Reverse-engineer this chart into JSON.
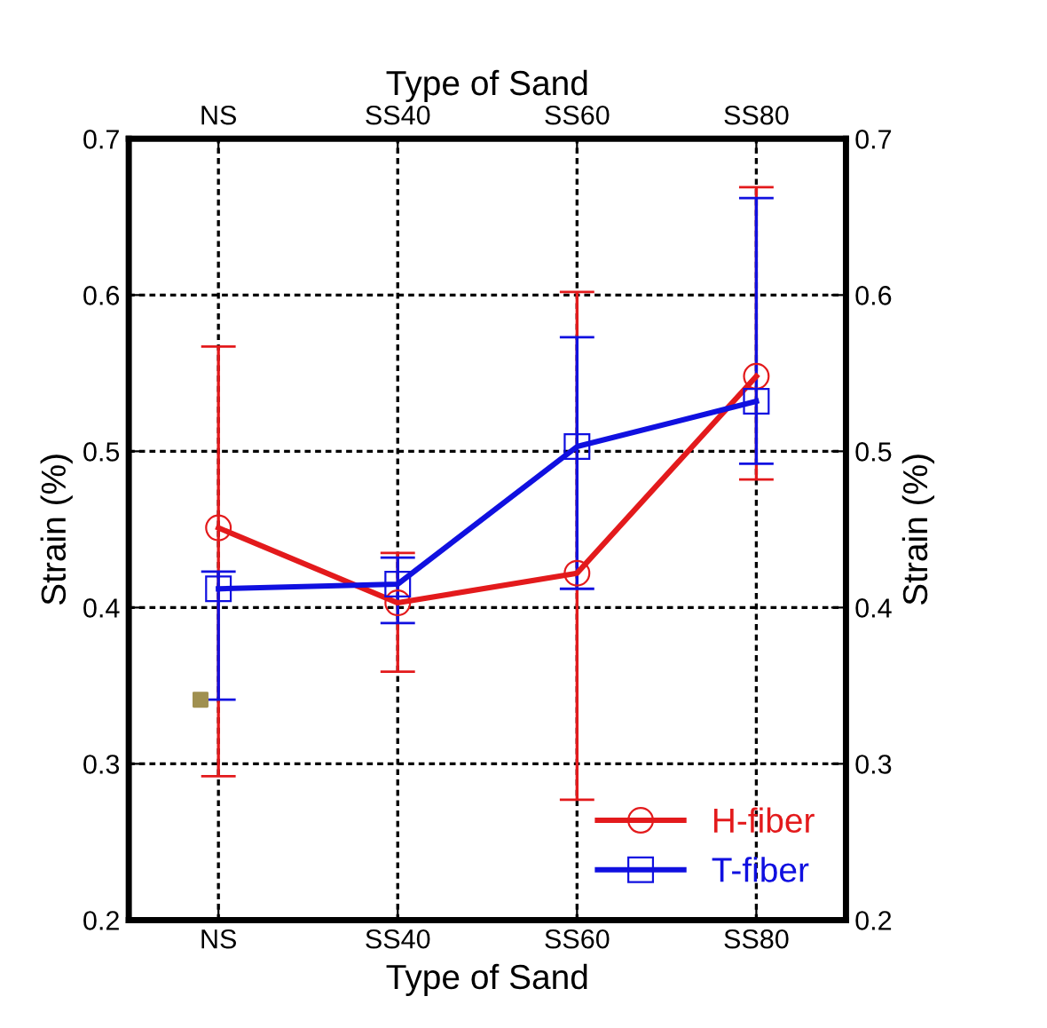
{
  "chart_data": {
    "type": "line",
    "xlabel": "Type of Sand",
    "x2label": "Type of Sand",
    "ylabel": "Strain (%)",
    "y2label": "Strain (%)",
    "categories": [
      "NS",
      "SS40",
      "SS60",
      "SS80"
    ],
    "ylim": [
      0.2,
      0.7
    ],
    "yticks": [
      0.2,
      0.3,
      0.4,
      0.5,
      0.6,
      0.7
    ],
    "y2lim": [
      0.2,
      0.7
    ],
    "y2ticks": [
      0.2,
      0.3,
      0.4,
      0.5,
      0.6,
      0.7
    ],
    "grid": true,
    "legend": "bottom right",
    "line_style": "solid",
    "series": [
      {
        "name": "H-fiber",
        "color": "#e31a1c",
        "marker": "circle",
        "values": [
          0.451,
          0.403,
          0.422,
          0.548
        ],
        "errors": [
          [
            0.292,
            0.567
          ],
          [
            0.359,
            0.435
          ],
          [
            0.277,
            0.602
          ],
          [
            0.482,
            0.669
          ]
        ]
      },
      {
        "name": "T-fiber",
        "color": "#1010e0",
        "marker": "square",
        "values": [
          0.412,
          0.415,
          0.503,
          0.532
        ],
        "errors": [
          [
            0.341,
            0.423
          ],
          [
            0.39,
            0.432
          ],
          [
            0.412,
            0.573
          ],
          [
            0.492,
            0.662
          ]
        ]
      },
      {
        "type": "scatter",
        "color": "#a09050",
        "marker": "square",
        "x": [
          "NS"
        ],
        "values": [
          0.341
        ]
      }
    ]
  }
}
